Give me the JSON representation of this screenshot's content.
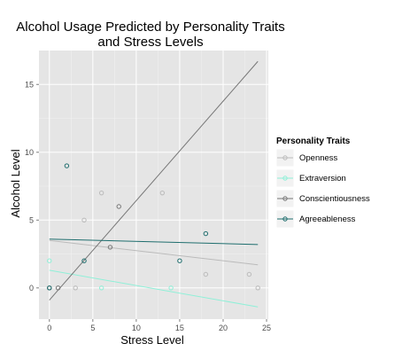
{
  "chart_data": {
    "type": "scatter",
    "title_line1": "Alcohol Usage Predicted by Personality Traits",
    "title_line2": "and Stress Levels",
    "xlabel": "Stress Level",
    "ylabel": "Alcohol Level",
    "xlim": [
      -1.2,
      25.2
    ],
    "ylim": [
      -2.3,
      17.5
    ],
    "x_ticks": [
      0,
      5,
      10,
      15,
      20,
      25
    ],
    "y_ticks": [
      0,
      5,
      10,
      15
    ],
    "grid": true,
    "legend_title": "Personality Traits",
    "legend_position": "right",
    "series": [
      {
        "name": "Openness",
        "color": "#bbbbbb",
        "points": [
          [
            0,
            0
          ],
          [
            3,
            0
          ],
          [
            4,
            5
          ],
          [
            6,
            7
          ],
          [
            13,
            7
          ],
          [
            18,
            1
          ],
          [
            23,
            1
          ],
          [
            24,
            0
          ]
        ],
        "fit": [
          [
            0,
            3.5
          ],
          [
            24,
            1.7
          ]
        ]
      },
      {
        "name": "Extraversion",
        "color": "#8ff0d8",
        "points": [
          [
            0,
            2
          ],
          [
            6,
            0
          ],
          [
            14,
            0
          ]
        ],
        "fit": [
          [
            0,
            1.3
          ],
          [
            24,
            -1.4
          ]
        ]
      },
      {
        "name": "Conscientiousness",
        "color": "#777777",
        "points": [
          [
            0,
            0
          ],
          [
            1,
            0
          ],
          [
            7,
            3
          ],
          [
            8,
            6
          ]
        ],
        "fit": [
          [
            0,
            -0.9
          ],
          [
            24,
            16.7
          ]
        ]
      },
      {
        "name": "Agreeableness",
        "color": "#1f6e6e",
        "points": [
          [
            0,
            0
          ],
          [
            2,
            9
          ],
          [
            4,
            2
          ],
          [
            15,
            2
          ],
          [
            18,
            4
          ]
        ],
        "fit": [
          [
            0,
            3.6
          ],
          [
            24,
            3.2
          ]
        ]
      }
    ]
  }
}
